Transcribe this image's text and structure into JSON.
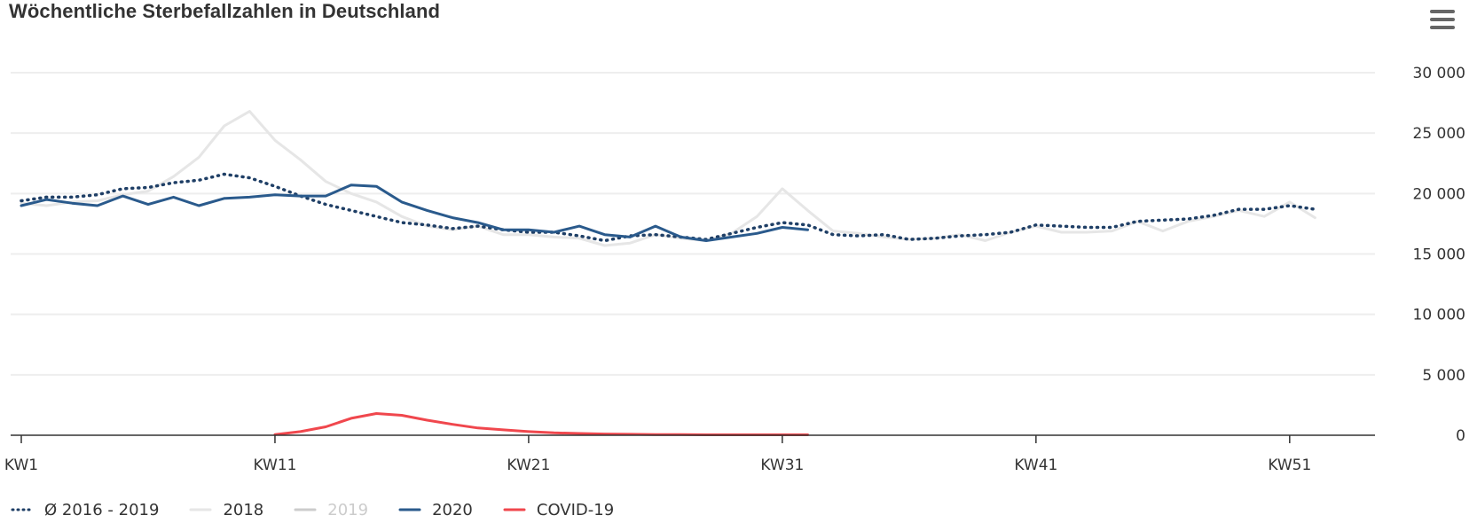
{
  "header": {
    "title": "Wöchentliche Sterbefallzahlen in Deutschland",
    "menu_icon": "hamburger-menu-icon"
  },
  "chart_data": {
    "type": "line",
    "title": "Wöchentliche Sterbefallzahlen in Deutschland",
    "xlabel": "",
    "ylabel": "",
    "x_range": [
      1,
      53
    ],
    "ylim": [
      0,
      30000
    ],
    "yticks": [
      0,
      5000,
      10000,
      15000,
      20000,
      25000,
      30000
    ],
    "ytick_labels": [
      "0",
      "5 000",
      "10 000",
      "15 000",
      "20 000",
      "25 000",
      "30 000"
    ],
    "xticks": [
      1,
      11,
      21,
      31,
      41,
      51
    ],
    "xtick_labels": [
      "KW1",
      "KW11",
      "KW21",
      "KW31",
      "KW41",
      "KW51"
    ],
    "grid": true,
    "y_axis_position": "right",
    "legend_position": "bottom-left",
    "series": [
      {
        "name": "Ø 2016 - 2019",
        "color": "#1f3f66",
        "style": "dotted",
        "visible": true,
        "x": [
          1,
          2,
          3,
          4,
          5,
          6,
          7,
          8,
          9,
          10,
          11,
          12,
          13,
          14,
          15,
          16,
          17,
          18,
          19,
          20,
          21,
          22,
          23,
          24,
          25,
          26,
          27,
          28,
          29,
          30,
          31,
          32,
          33,
          34,
          35,
          36,
          37,
          38,
          39,
          40,
          41,
          42,
          43,
          44,
          45,
          46,
          47,
          48,
          49,
          50,
          51,
          52
        ],
        "values": [
          19400,
          19700,
          19700,
          19900,
          20400,
          20500,
          20900,
          21100,
          21600,
          21300,
          20600,
          19800,
          19100,
          18600,
          18100,
          17600,
          17400,
          17100,
          17300,
          17000,
          16800,
          16800,
          16500,
          16100,
          16500,
          16600,
          16400,
          16200,
          16700,
          17200,
          17600,
          17400,
          16600,
          16500,
          16600,
          16200,
          16300,
          16500,
          16600,
          16800,
          17400,
          17300,
          17200,
          17200,
          17700,
          17800,
          17900,
          18200,
          18700,
          18700,
          19000,
          18700
        ]
      },
      {
        "name": "2018",
        "color": "#e6e6e6",
        "style": "solid",
        "visible": true,
        "x": [
          1,
          2,
          3,
          4,
          5,
          6,
          7,
          8,
          9,
          10,
          11,
          12,
          13,
          14,
          15,
          16,
          17,
          18,
          19,
          20,
          21,
          22,
          23,
          24,
          25,
          26,
          27,
          28,
          29,
          30,
          31,
          32,
          33,
          34,
          35,
          36,
          37,
          38,
          39,
          40,
          41,
          42,
          43,
          44,
          45,
          46,
          47,
          48,
          49,
          50,
          51,
          52
        ],
        "values": [
          19200,
          19000,
          19300,
          19400,
          19900,
          20200,
          21400,
          23000,
          25600,
          26800,
          24400,
          22800,
          21000,
          20000,
          19300,
          18100,
          17300,
          17000,
          17300,
          16600,
          16600,
          16400,
          16300,
          15700,
          15900,
          16600,
          16300,
          16100,
          16700,
          18100,
          20400,
          18600,
          16900,
          16700,
          16400,
          16200,
          16300,
          16600,
          16100,
          16800,
          17300,
          16800,
          16800,
          16900,
          17700,
          16900,
          17700,
          18100,
          18600,
          18100,
          19300,
          18000
        ]
      },
      {
        "name": "2019",
        "color": "#cccccc",
        "style": "solid",
        "visible": false,
        "x": [],
        "values": []
      },
      {
        "name": "2020",
        "color": "#2a5a8c",
        "style": "solid",
        "visible": true,
        "x": [
          1,
          2,
          3,
          4,
          5,
          6,
          7,
          8,
          9,
          10,
          11,
          12,
          13,
          14,
          15,
          16,
          17,
          18,
          19,
          20,
          21,
          22,
          23,
          24,
          25,
          26,
          27,
          28,
          29,
          30,
          31,
          32
        ],
        "values": [
          19000,
          19500,
          19200,
          19000,
          19800,
          19100,
          19700,
          19000,
          19600,
          19700,
          19900,
          19800,
          19800,
          20700,
          20600,
          19300,
          18600,
          18000,
          17600,
          17000,
          17000,
          16800,
          17300,
          16600,
          16400,
          17300,
          16400,
          16100,
          16400,
          16700,
          17200,
          17000
        ]
      },
      {
        "name": "COVID-19",
        "color": "#f0474d",
        "style": "solid",
        "visible": true,
        "x": [
          11,
          12,
          13,
          14,
          15,
          16,
          17,
          18,
          19,
          20,
          21,
          22,
          23,
          24,
          25,
          26,
          27,
          28,
          29,
          30,
          31,
          32
        ],
        "values": [
          50,
          300,
          700,
          1400,
          1800,
          1650,
          1250,
          900,
          600,
          450,
          300,
          200,
          150,
          100,
          80,
          60,
          50,
          40,
          40,
          40,
          40,
          40
        ]
      }
    ]
  }
}
